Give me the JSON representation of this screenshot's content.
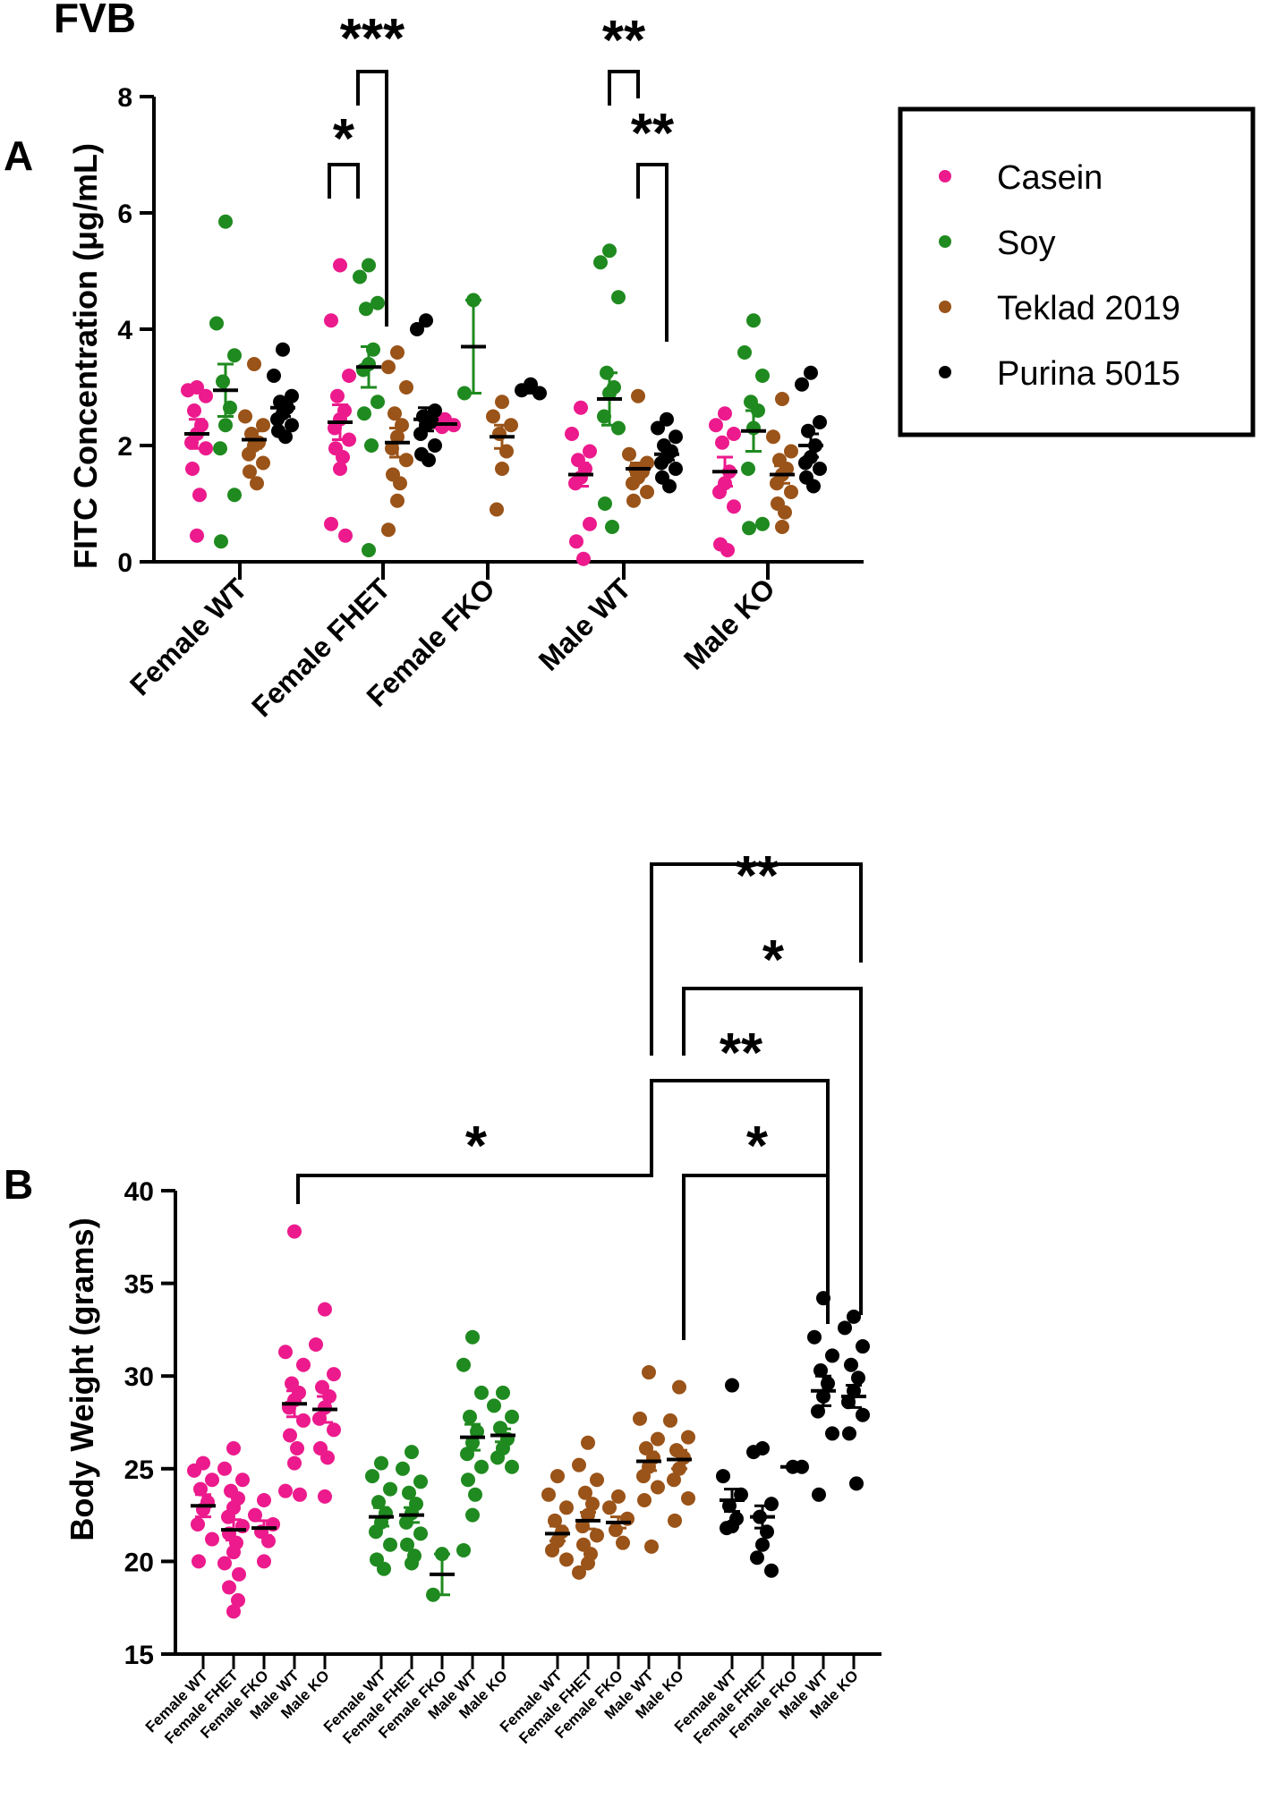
{
  "figure": {
    "strain": "FVB"
  },
  "colors": {
    "Casein": "#ec1a8c",
    "Soy": "#1f8a1f",
    "Teklad 2019": "#9a5318",
    "Purina 5015": "#000000"
  },
  "legend": {
    "entries": [
      "Casein",
      "Soy",
      "Teklad 2019",
      "Purina 5015"
    ]
  },
  "chart_data": [
    {
      "panel": "A",
      "type": "scatter",
      "ylabel": "FITC Concentration (μg/mL)",
      "ylim": [
        0,
        8
      ],
      "yticks": [
        "0",
        "2",
        "4",
        "6",
        "8"
      ],
      "categories": [
        "Female WT",
        "Female FHET",
        "Female FKO",
        "Male WT",
        "Male KO"
      ],
      "series": [
        {
          "name": "Casein",
          "groups": [
            {
              "mean": 2.2,
              "sem": 0.25,
              "points": [
                2.95,
                3.0,
                2.85,
                2.6,
                2.35,
                2.2,
                2.05,
                1.95,
                1.6,
                1.15,
                0.45
              ]
            },
            {
              "mean": 2.4,
              "sem": 0.3,
              "points": [
                5.1,
                4.15,
                3.2,
                2.85,
                2.6,
                2.45,
                2.3,
                2.1,
                1.95,
                1.8,
                1.6,
                0.65,
                0.45
              ]
            },
            {
              "mean": 2.37,
              "sem": 0.05,
              "points": [
                2.45,
                2.4,
                2.35,
                2.32
              ]
            },
            {
              "mean": 1.5,
              "sem": 0.2,
              "points": [
                2.65,
                2.2,
                1.9,
                1.75,
                1.6,
                1.45,
                1.35,
                0.65,
                0.35,
                0.05
              ]
            },
            {
              "mean": 1.55,
              "sem": 0.25,
              "points": [
                2.55,
                2.35,
                2.2,
                2.05,
                1.55,
                1.35,
                1.2,
                0.95,
                0.3,
                0.2
              ]
            }
          ]
        },
        {
          "name": "Soy",
          "groups": [
            {
              "mean": 2.95,
              "sem": 0.45,
              "points": [
                5.85,
                4.1,
                3.55,
                3.1,
                2.65,
                2.35,
                1.95,
                1.15,
                0.35
              ]
            },
            {
              "mean": 3.35,
              "sem": 0.35,
              "points": [
                5.1,
                4.9,
                4.45,
                4.35,
                3.65,
                3.4,
                3.3,
                2.75,
                2.55,
                2.0,
                0.2
              ]
            },
            {
              "mean": 3.7,
              "sem": 0.8,
              "points": [
                4.5,
                2.9
              ]
            },
            {
              "mean": 2.8,
              "sem": 0.45,
              "points": [
                5.35,
                5.15,
                4.55,
                3.25,
                3.0,
                2.9,
                2.5,
                2.3,
                1.0,
                0.6
              ]
            },
            {
              "mean": 2.25,
              "sem": 0.35,
              "points": [
                4.15,
                3.6,
                3.2,
                2.75,
                2.6,
                2.3,
                1.6,
                0.65,
                0.58
              ]
            }
          ]
        },
        {
          "name": "Teklad 2019",
          "groups": [
            {
              "mean": 2.1,
              "sem": 0.15,
              "points": [
                3.4,
                2.5,
                2.35,
                2.2,
                2.05,
                2.0,
                1.85,
                1.7,
                1.55,
                1.35
              ]
            },
            {
              "mean": 2.05,
              "sem": 0.25,
              "points": [
                3.6,
                3.35,
                3.0,
                2.55,
                2.35,
                2.15,
                1.95,
                1.75,
                1.5,
                1.35,
                1.05,
                0.55
              ]
            },
            {
              "mean": 2.15,
              "sem": 0.2,
              "points": [
                2.75,
                2.5,
                2.35,
                2.2,
                1.9,
                1.6,
                0.9
              ]
            },
            {
              "mean": 1.6,
              "sem": 0.1,
              "points": [
                2.85,
                1.85,
                1.7,
                1.6,
                1.55,
                1.45,
                1.35,
                1.2,
                1.05
              ]
            },
            {
              "mean": 1.5,
              "sem": 0.15,
              "points": [
                2.8,
                2.15,
                1.9,
                1.75,
                1.6,
                1.5,
                1.35,
                1.2,
                1.0,
                0.85,
                0.6
              ]
            }
          ]
        },
        {
          "name": "Purina 5015",
          "groups": [
            {
              "mean": 2.65,
              "sem": 0.15,
              "points": [
                3.65,
                3.2,
                2.85,
                2.75,
                2.65,
                2.55,
                2.45,
                2.35,
                2.25,
                2.15
              ]
            },
            {
              "mean": 2.45,
              "sem": 0.2,
              "points": [
                4.15,
                4.0,
                2.6,
                2.5,
                2.4,
                2.35,
                2.2,
                2.0,
                1.85,
                1.75
              ]
            },
            {
              "mean": 2.95,
              "sem": 0.05,
              "points": [
                3.05,
                2.95,
                2.9
              ]
            },
            {
              "mean": 1.85,
              "sem": 0.1,
              "points": [
                2.45,
                2.3,
                2.15,
                2.0,
                1.9,
                1.8,
                1.7,
                1.6,
                1.45,
                1.3
              ]
            },
            {
              "mean": 2.0,
              "sem": 0.2,
              "points": [
                3.25,
                3.05,
                2.4,
                2.25,
                2.0,
                1.8,
                1.7,
                1.6,
                1.45,
                1.3
              ]
            }
          ]
        }
      ],
      "significance": [
        {
          "label": "*",
          "from": [
            "Female FHET",
            "Casein"
          ],
          "to": [
            "Female FHET",
            "Soy"
          ]
        },
        {
          "label": "***",
          "from": [
            "Female FHET",
            "Soy"
          ],
          "to": [
            "Female FHET",
            "Teklad 2019"
          ]
        },
        {
          "label": "**",
          "from": [
            "Male WT",
            "Casein"
          ],
          "to": [
            "Male WT",
            "Soy"
          ]
        },
        {
          "label": "**",
          "from": [
            "Male WT",
            "Soy"
          ],
          "to": [
            "Male WT",
            "Teklad 2019"
          ]
        }
      ]
    },
    {
      "panel": "B",
      "type": "scatter",
      "ylabel": "Body Weight (grams)",
      "ylim": [
        15,
        40
      ],
      "yticks": [
        "15",
        "20",
        "25",
        "30",
        "35",
        "40"
      ],
      "categories": [
        "Female WT",
        "Female FHET",
        "Female FKO",
        "Male WT",
        "Male KO"
      ],
      "series": [
        {
          "name": "Casein",
          "groups": [
            {
              "mean": 23.0,
              "sem": 0.6,
              "points": [
                25.3,
                24.9,
                24.4,
                23.9,
                23.2,
                22.8,
                22.0,
                21.2,
                20.0
              ]
            },
            {
              "mean": 21.7,
              "sem": 0.55,
              "points": [
                26.1,
                25.0,
                24.4,
                23.8,
                23.4,
                22.9,
                22.4,
                21.9,
                21.5,
                21.0,
                20.5,
                19.9,
                19.3,
                18.6,
                17.9,
                17.3
              ]
            },
            {
              "mean": 21.8,
              "sem": 0.4,
              "points": [
                23.3,
                22.5,
                22.0,
                21.6,
                21.1,
                20.0
              ]
            },
            {
              "mean": 28.5,
              "sem": 0.7,
              "points": [
                37.8,
                31.3,
                30.6,
                29.6,
                29.1,
                28.7,
                28.3,
                27.6,
                26.8,
                26.1,
                25.3,
                23.8,
                23.6
              ]
            },
            {
              "mean": 28.2,
              "sem": 0.7,
              "points": [
                33.6,
                31.7,
                30.1,
                29.4,
                28.9,
                28.3,
                27.7,
                27.1,
                26.1,
                25.6,
                23.5
              ]
            }
          ]
        },
        {
          "name": "Soy",
          "groups": [
            {
              "mean": 22.4,
              "sem": 0.5,
              "points": [
                25.3,
                24.6,
                23.9,
                23.2,
                22.6,
                22.1,
                21.6,
                20.9,
                20.1,
                19.6
              ]
            },
            {
              "mean": 22.5,
              "sem": 0.4,
              "points": [
                25.9,
                25.0,
                24.3,
                23.7,
                23.1,
                22.6,
                22.1,
                21.5,
                20.9,
                20.3,
                19.9
              ]
            },
            {
              "mean": 19.3,
              "sem": 1.1,
              "points": [
                20.4,
                18.2
              ]
            },
            {
              "mean": 26.7,
              "sem": 0.7,
              "points": [
                32.1,
                30.6,
                29.1,
                27.8,
                27.0,
                26.4,
                25.8,
                25.1,
                24.4,
                23.6,
                22.5,
                20.6
              ]
            },
            {
              "mean": 26.8,
              "sem": 0.35,
              "points": [
                29.1,
                28.4,
                27.8,
                27.2,
                26.6,
                26.1,
                25.6,
                25.1
              ]
            }
          ]
        },
        {
          "name": "Teklad 2019",
          "groups": [
            {
              "mean": 21.5,
              "sem": 0.4,
              "points": [
                24.6,
                23.6,
                22.9,
                22.2,
                21.6,
                21.1,
                20.6,
                20.1
              ]
            },
            {
              "mean": 22.2,
              "sem": 0.45,
              "points": [
                26.4,
                25.2,
                24.4,
                23.7,
                23.1,
                22.5,
                21.9,
                21.4,
                20.9,
                20.4,
                19.9,
                19.4
              ]
            },
            {
              "mean": 22.1,
              "sem": 0.3,
              "points": [
                23.5,
                22.9,
                22.3,
                21.7,
                21.0
              ]
            },
            {
              "mean": 25.4,
              "sem": 0.5,
              "points": [
                30.2,
                27.7,
                26.6,
                26.1,
                25.6,
                25.1,
                24.6,
                24.0,
                23.3,
                20.8
              ]
            },
            {
              "mean": 25.5,
              "sem": 0.5,
              "points": [
                29.4,
                27.6,
                26.7,
                26.0,
                25.6,
                25.0,
                24.4,
                23.4,
                22.2
              ]
            }
          ]
        },
        {
          "name": "Purina 5015",
          "groups": [
            {
              "mean": 23.3,
              "sem": 0.6,
              "points": [
                29.5,
                24.6,
                23.6,
                23.0,
                22.3,
                21.9,
                21.8
              ]
            },
            {
              "mean": 22.4,
              "sem": 0.6,
              "points": [
                26.1,
                25.9,
                23.1,
                22.4,
                21.6,
                20.9,
                20.2,
                19.5
              ]
            },
            {
              "mean": 25.1,
              "sem": 0.0,
              "points": [
                25.1,
                25.1
              ]
            },
            {
              "mean": 29.2,
              "sem": 0.8,
              "points": [
                34.2,
                32.1,
                31.1,
                30.3,
                29.6,
                28.9,
                28.1,
                26.9,
                23.6
              ]
            },
            {
              "mean": 28.9,
              "sem": 0.6,
              "points": [
                33.2,
                32.6,
                31.6,
                30.6,
                29.9,
                29.2,
                28.6,
                27.9,
                26.9,
                24.2
              ]
            }
          ]
        }
      ],
      "significance": [
        {
          "label": "*",
          "from": [
            "Casein",
            "Male WT"
          ],
          "to": [
            "Teklad 2019",
            "Male WT"
          ]
        },
        {
          "label": "*",
          "from": [
            "Teklad 2019",
            "Male KO"
          ],
          "to": [
            "Purina 5015",
            "Male WT"
          ]
        },
        {
          "label": "**",
          "from": [
            "Teklad 2019",
            "Male WT"
          ],
          "to": [
            "Purina 5015",
            "Male WT"
          ]
        },
        {
          "label": "*",
          "from": [
            "Teklad 2019",
            "Male KO"
          ],
          "to": [
            "Purina 5015",
            "Male KO"
          ]
        },
        {
          "label": "**",
          "from": [
            "Teklad 2019",
            "Male WT"
          ],
          "to": [
            "Purina 5015",
            "Male KO"
          ]
        }
      ]
    }
  ]
}
